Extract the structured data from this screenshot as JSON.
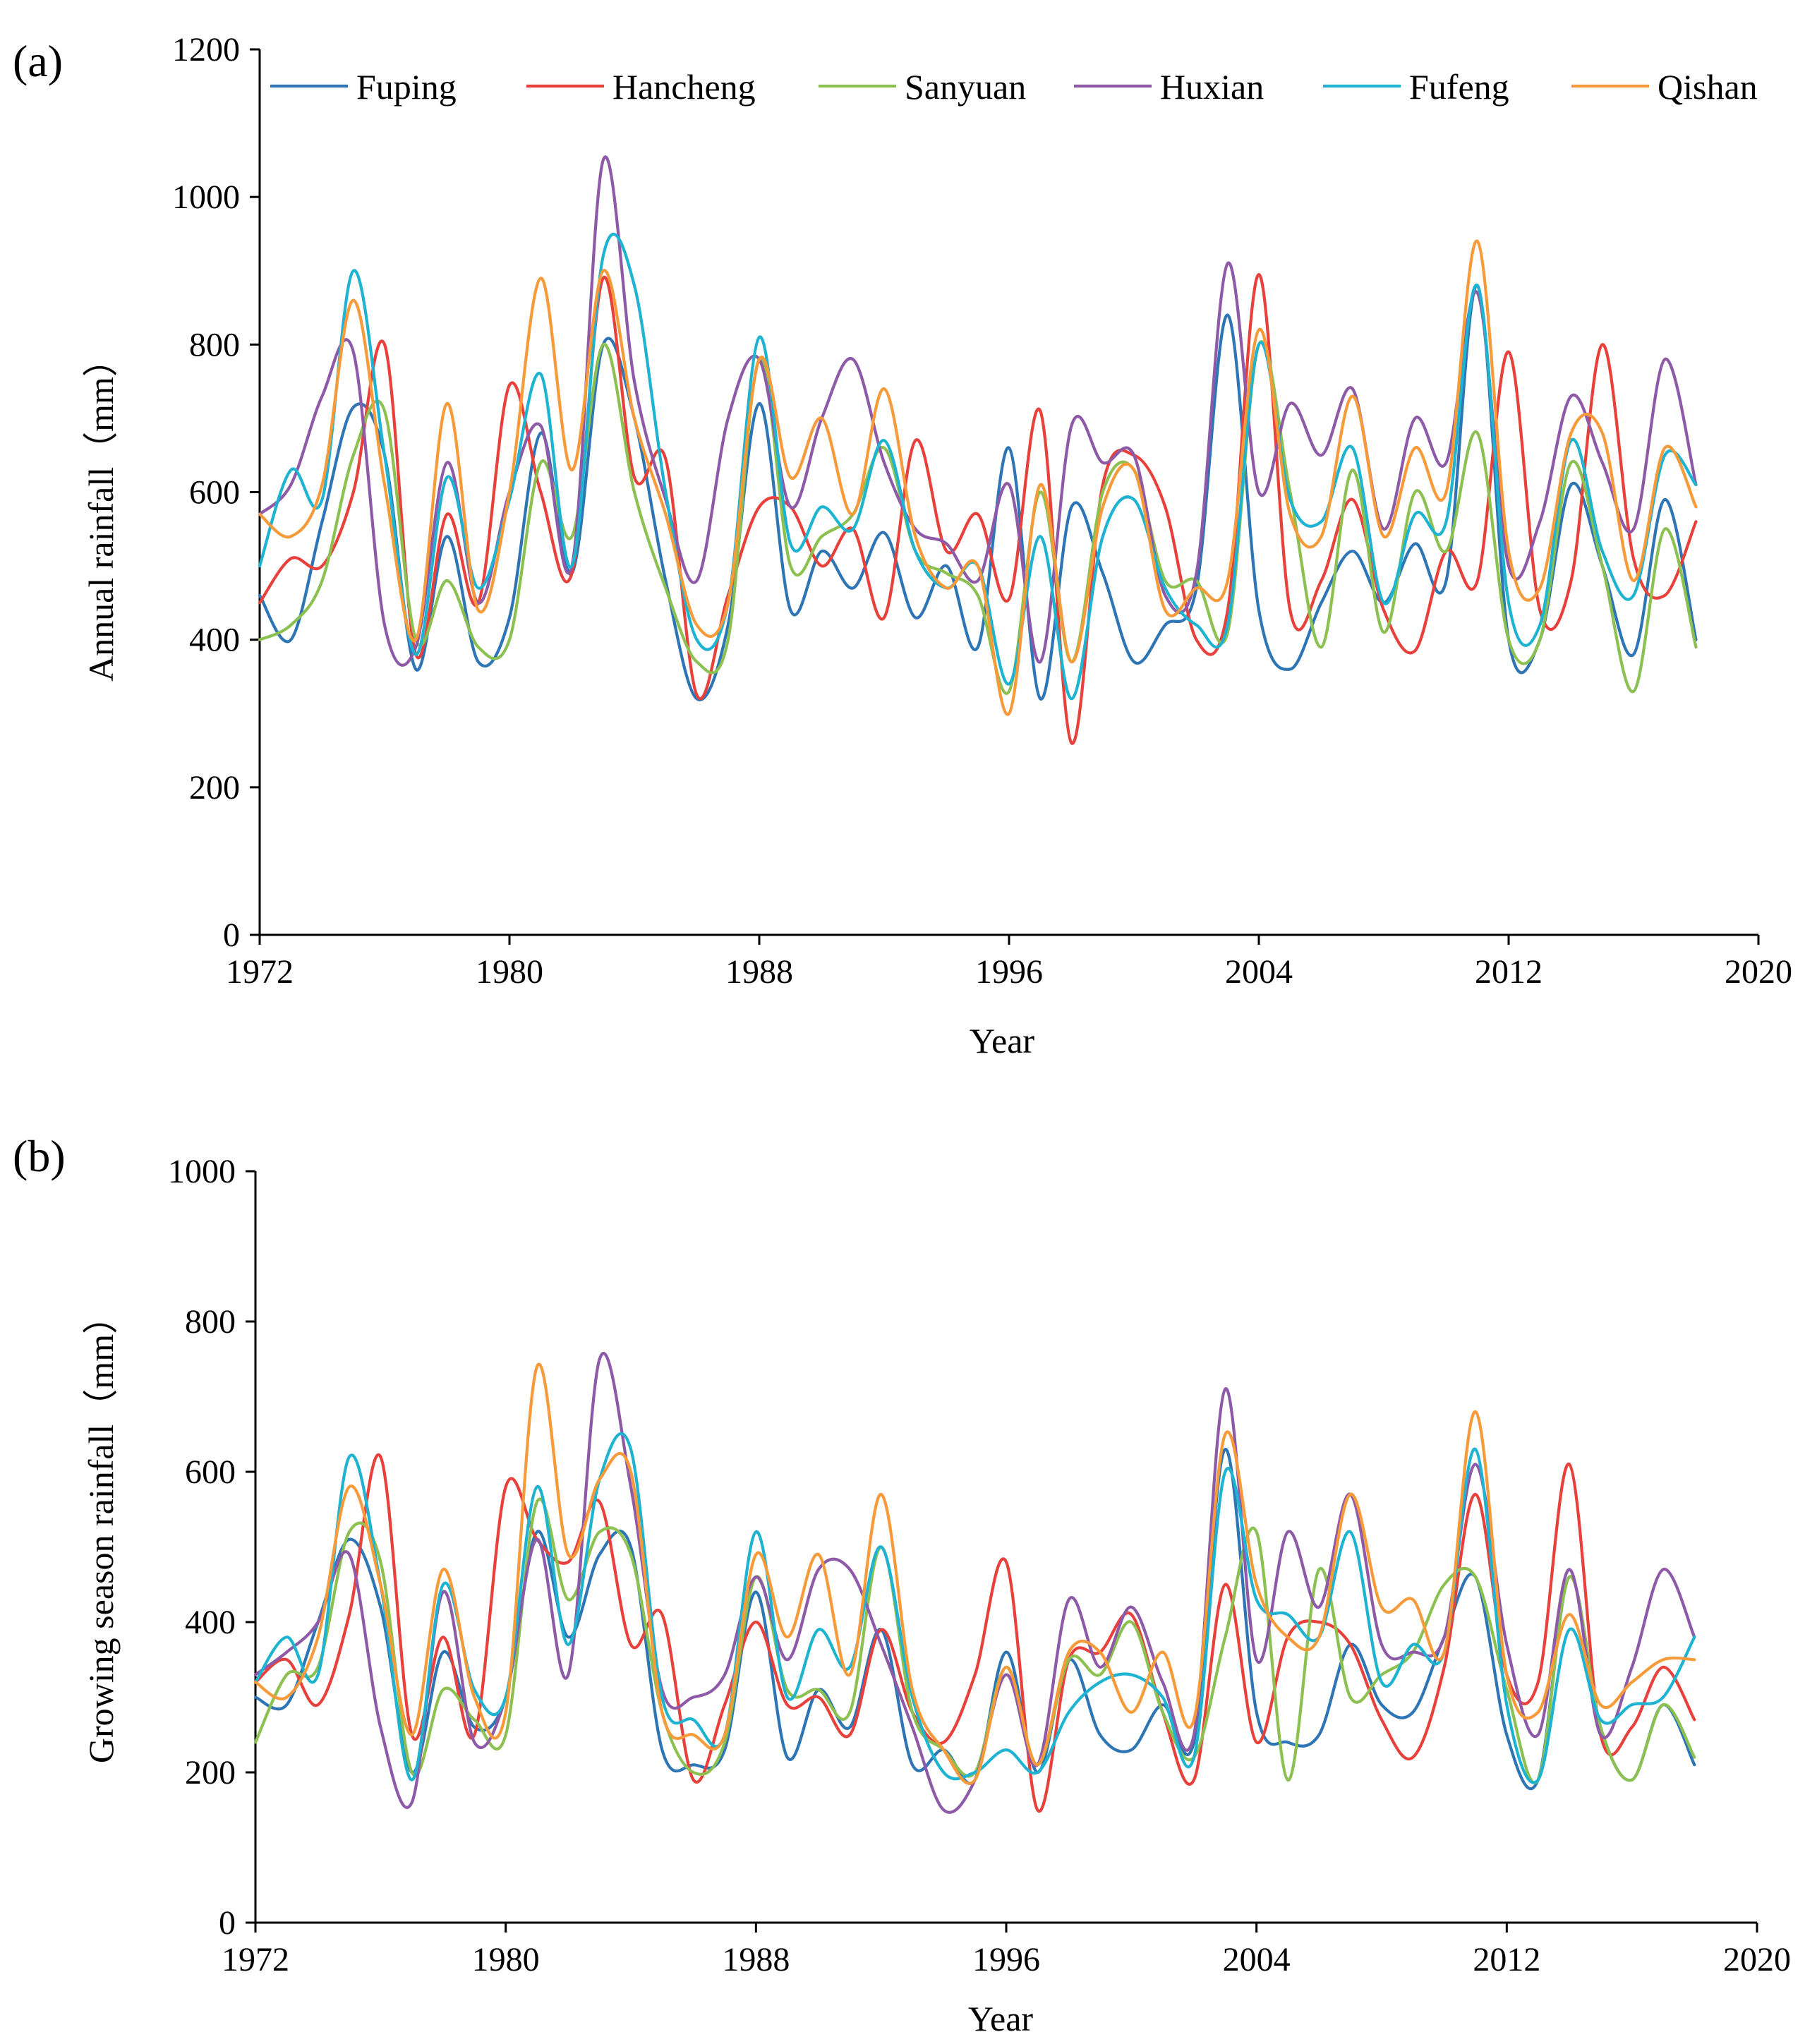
{
  "legend": [
    "Fuping",
    "Hancheng",
    "Sanyuan",
    "Huxian",
    "Fufeng",
    "Qishan"
  ],
  "colors": {
    "Fuping": "#2e75b6",
    "Hancheng": "#e8413c",
    "Sanyuan": "#8cc152",
    "Huxian": "#8e5aa8",
    "Fufeng": "#1fb3d2",
    "Qishan": "#f79a3a"
  },
  "chart_data": [
    {
      "panel_label": "(a)",
      "type": "line",
      "xlabel": "Year",
      "ylabel": "Annual rainfall（mm）",
      "xlim": [
        1972,
        2020
      ],
      "ylim": [
        0,
        1200
      ],
      "xticks": [
        1972,
        1980,
        1988,
        1996,
        2004,
        2012,
        2020
      ],
      "yticks": [
        0,
        200,
        400,
        600,
        800,
        1000,
        1200
      ],
      "x": [
        1972,
        1973,
        1974,
        1975,
        1976,
        1977,
        1978,
        1979,
        1980,
        1981,
        1982,
        1983,
        1984,
        1985,
        1986,
        1987,
        1988,
        1989,
        1990,
        1991,
        1992,
        1993,
        1994,
        1995,
        1996,
        1997,
        1998,
        1999,
        2000,
        2001,
        2002,
        2003,
        2004,
        2005,
        2006,
        2007,
        2008,
        2009,
        2010,
        2011,
        2012,
        2013,
        2014,
        2015,
        2016,
        2017,
        2018
      ],
      "series": [
        {
          "name": "Fuping",
          "values": [
            460,
            400,
            560,
            715,
            650,
            360,
            540,
            370,
            430,
            680,
            490,
            800,
            700,
            480,
            320,
            420,
            720,
            440,
            520,
            470,
            545,
            430,
            500,
            390,
            660,
            320,
            580,
            490,
            370,
            420,
            470,
            840,
            440,
            360,
            450,
            520,
            450,
            530,
            480,
            880,
            400,
            400,
            610,
            500,
            380,
            590,
            400
          ]
        },
        {
          "name": "Hancheng",
          "values": [
            450,
            510,
            500,
            600,
            800,
            380,
            570,
            450,
            745,
            600,
            490,
            890,
            620,
            645,
            325,
            460,
            580,
            580,
            500,
            550,
            430,
            670,
            520,
            570,
            455,
            710,
            260,
            610,
            650,
            580,
            400,
            440,
            895,
            440,
            480,
            590,
            440,
            385,
            520,
            480,
            790,
            440,
            480,
            800,
            510,
            460,
            560
          ]
        },
        {
          "name": "Sanyuan",
          "values": [
            400,
            420,
            480,
            650,
            710,
            400,
            480,
            390,
            400,
            640,
            540,
            800,
            600,
            470,
            370,
            400,
            780,
            500,
            540,
            570,
            660,
            520,
            490,
            460,
            330,
            600,
            370,
            600,
            630,
            480,
            480,
            410,
            800,
            600,
            390,
            630,
            410,
            600,
            520,
            680,
            400,
            400,
            640,
            500,
            330,
            550,
            390
          ]
        },
        {
          "name": "Huxian",
          "values": [
            570,
            610,
            730,
            790,
            420,
            390,
            640,
            450,
            600,
            690,
            500,
            1050,
            750,
            590,
            480,
            700,
            780,
            580,
            700,
            780,
            640,
            550,
            530,
            480,
            610,
            370,
            690,
            640,
            650,
            460,
            490,
            910,
            600,
            720,
            650,
            740,
            550,
            700,
            640,
            870,
            500,
            560,
            730,
            640,
            550,
            780,
            610
          ]
        },
        {
          "name": "Fufeng",
          "values": [
            500,
            630,
            590,
            900,
            650,
            380,
            620,
            470,
            590,
            760,
            500,
            920,
            880,
            600,
            400,
            450,
            810,
            530,
            580,
            550,
            670,
            520,
            470,
            500,
            340,
            540,
            320,
            540,
            590,
            470,
            420,
            420,
            800,
            590,
            560,
            660,
            450,
            570,
            560,
            880,
            450,
            420,
            670,
            520,
            460,
            650,
            610
          ]
        },
        {
          "name": "Qishan",
          "values": [
            570,
            540,
            610,
            860,
            610,
            400,
            720,
            440,
            600,
            890,
            630,
            900,
            700,
            570,
            420,
            450,
            780,
            620,
            700,
            570,
            740,
            540,
            470,
            500,
            300,
            610,
            370,
            580,
            630,
            440,
            470,
            480,
            820,
            570,
            540,
            730,
            540,
            660,
            600,
            940,
            520,
            470,
            680,
            680,
            480,
            660,
            580
          ]
        }
      ]
    },
    {
      "panel_label": "(b)",
      "type": "line",
      "xlabel": "Year",
      "ylabel": "Growing season rainfall（mm）",
      "xlim": [
        1972,
        2020
      ],
      "ylim": [
        0,
        1000
      ],
      "xticks": [
        1972,
        1980,
        1988,
        1996,
        2004,
        2012,
        2020
      ],
      "yticks": [
        0,
        200,
        400,
        600,
        800,
        1000
      ],
      "x": [
        1972,
        1973,
        1974,
        1975,
        1976,
        1977,
        1978,
        1979,
        1980,
        1981,
        1982,
        1983,
        1984,
        1985,
        1986,
        1987,
        1988,
        1989,
        1990,
        1991,
        1992,
        1993,
        1994,
        1995,
        1996,
        1997,
        1998,
        1999,
        2000,
        2001,
        2002,
        2003,
        2004,
        2005,
        2006,
        2007,
        2008,
        2009,
        2010,
        2011,
        2012,
        2013,
        2014,
        2015,
        2016,
        2017,
        2018
      ],
      "series": [
        {
          "name": "Fuping",
          "values": [
            300,
            290,
            400,
            510,
            420,
            200,
            360,
            260,
            300,
            520,
            380,
            490,
            500,
            230,
            210,
            230,
            440,
            220,
            310,
            260,
            390,
            210,
            230,
            190,
            360,
            200,
            350,
            250,
            230,
            290,
            240,
            630,
            280,
            240,
            250,
            370,
            290,
            280,
            380,
            460,
            250,
            190,
            460,
            260,
            190,
            290,
            210
          ]
        },
        {
          "name": "Hancheng",
          "values": [
            320,
            350,
            290,
            410,
            620,
            250,
            380,
            250,
            580,
            510,
            480,
            560,
            370,
            410,
            190,
            290,
            400,
            290,
            300,
            250,
            390,
            280,
            240,
            330,
            480,
            150,
            350,
            360,
            410,
            280,
            190,
            450,
            240,
            380,
            400,
            370,
            270,
            220,
            340,
            570,
            330,
            320,
            610,
            250,
            260,
            340,
            270
          ]
        },
        {
          "name": "Sanyuan",
          "values": [
            240,
            330,
            340,
            520,
            480,
            200,
            310,
            270,
            250,
            560,
            430,
            520,
            490,
            280,
            200,
            240,
            460,
            310,
            310,
            280,
            500,
            280,
            230,
            200,
            340,
            210,
            350,
            330,
            400,
            280,
            220,
            380,
            520,
            190,
            470,
            300,
            330,
            360,
            450,
            460,
            310,
            190,
            460,
            260,
            190,
            290,
            220
          ]
        },
        {
          "name": "Huxian",
          "values": [
            330,
            360,
            400,
            490,
            260,
            160,
            440,
            240,
            300,
            510,
            330,
            750,
            580,
            310,
            300,
            330,
            460,
            350,
            470,
            470,
            370,
            260,
            150,
            190,
            330,
            210,
            430,
            340,
            420,
            320,
            250,
            710,
            350,
            520,
            420,
            570,
            370,
            360,
            380,
            610,
            370,
            250,
            470,
            250,
            340,
            470,
            380
          ]
        },
        {
          "name": "Fufeng",
          "values": [
            320,
            380,
            330,
            620,
            450,
            190,
            450,
            310,
            300,
            580,
            370,
            590,
            630,
            300,
            270,
            250,
            520,
            300,
            390,
            340,
            500,
            300,
            200,
            200,
            230,
            200,
            280,
            320,
            330,
            300,
            220,
            600,
            430,
            410,
            380,
            520,
            320,
            370,
            360,
            630,
            290,
            190,
            390,
            270,
            290,
            300,
            380
          ]
        },
        {
          "name": "Qishan",
          "values": [
            320,
            300,
            380,
            580,
            450,
            250,
            470,
            300,
            280,
            740,
            490,
            590,
            600,
            280,
            250,
            250,
            490,
            380,
            490,
            330,
            570,
            310,
            230,
            190,
            340,
            210,
            360,
            360,
            280,
            360,
            270,
            650,
            450,
            380,
            380,
            570,
            420,
            430,
            360,
            680,
            330,
            280,
            410,
            290,
            320,
            350,
            350
          ]
        }
      ]
    }
  ]
}
